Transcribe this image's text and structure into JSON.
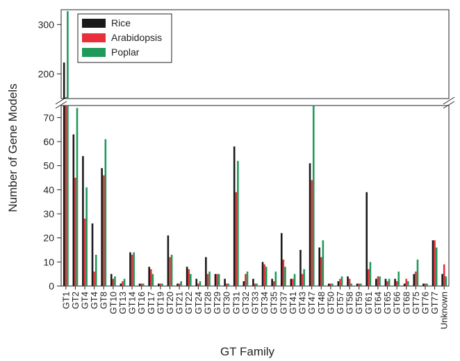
{
  "chart_data": {
    "type": "bar",
    "xlabel": "GT Family",
    "ylabel": "Number of Gene Models",
    "axis_break": true,
    "ylim_lower": [
      0,
      75
    ],
    "ylim_upper": [
      150,
      330
    ],
    "yticks_lower": [
      0,
      10,
      20,
      30,
      40,
      50,
      60,
      70
    ],
    "yticks_upper": [
      200,
      300
    ],
    "legend_position": "top-left",
    "grid": false,
    "categories": [
      "GT1",
      "GT2",
      "GT4",
      "GT4",
      "GT8",
      "GT10",
      "GT13",
      "GT14",
      "GT16",
      "GT17",
      "GT19",
      "GT20",
      "GT21",
      "GT22",
      "GT24",
      "GT28",
      "GT29",
      "GT30",
      "GT31",
      "GT32",
      "GT33",
      "GT34",
      "GT35",
      "GT37",
      "GT41",
      "GT43",
      "GT47",
      "GT48",
      "GT50",
      "GT57",
      "GT58",
      "GT59",
      "GT61",
      "GT64",
      "GT65",
      "GT66",
      "GT68",
      "GT75",
      "GT76",
      "GT77",
      "Unknown"
    ],
    "series": [
      {
        "name": "Rice",
        "color": "#1a1a1a",
        "values": [
          223,
          63,
          54,
          26,
          49,
          5,
          1,
          14,
          1,
          8,
          1,
          21,
          1,
          8,
          3,
          12,
          5,
          3,
          58,
          2,
          3,
          10,
          3,
          22,
          3,
          15,
          51,
          16,
          1,
          2,
          4,
          1,
          39,
          3,
          3,
          3,
          1,
          5,
          1,
          19,
          5
        ]
      },
      {
        "name": "Arabidopsis",
        "color": "#e8303a",
        "values": [
          137,
          45,
          28,
          6,
          46,
          3,
          2,
          13,
          1,
          7,
          1,
          12,
          1,
          7,
          1,
          5,
          5,
          1,
          39,
          5,
          1,
          9,
          2,
          11,
          3,
          5,
          44,
          12,
          1,
          3,
          3,
          1,
          7,
          4,
          2,
          2,
          3,
          6,
          1,
          19,
          9
        ]
      },
      {
        "name": "Poplar",
        "color": "#1f9a5a",
        "values": [
          327,
          74,
          41,
          13,
          61,
          4,
          3,
          14,
          1,
          5,
          1,
          13,
          2,
          5,
          2,
          6,
          5,
          1,
          52,
          6,
          1,
          8,
          6,
          8,
          5,
          7,
          75,
          19,
          1,
          4,
          1,
          1,
          10,
          4,
          3,
          6,
          2,
          11,
          1,
          16,
          4
        ]
      }
    ]
  }
}
